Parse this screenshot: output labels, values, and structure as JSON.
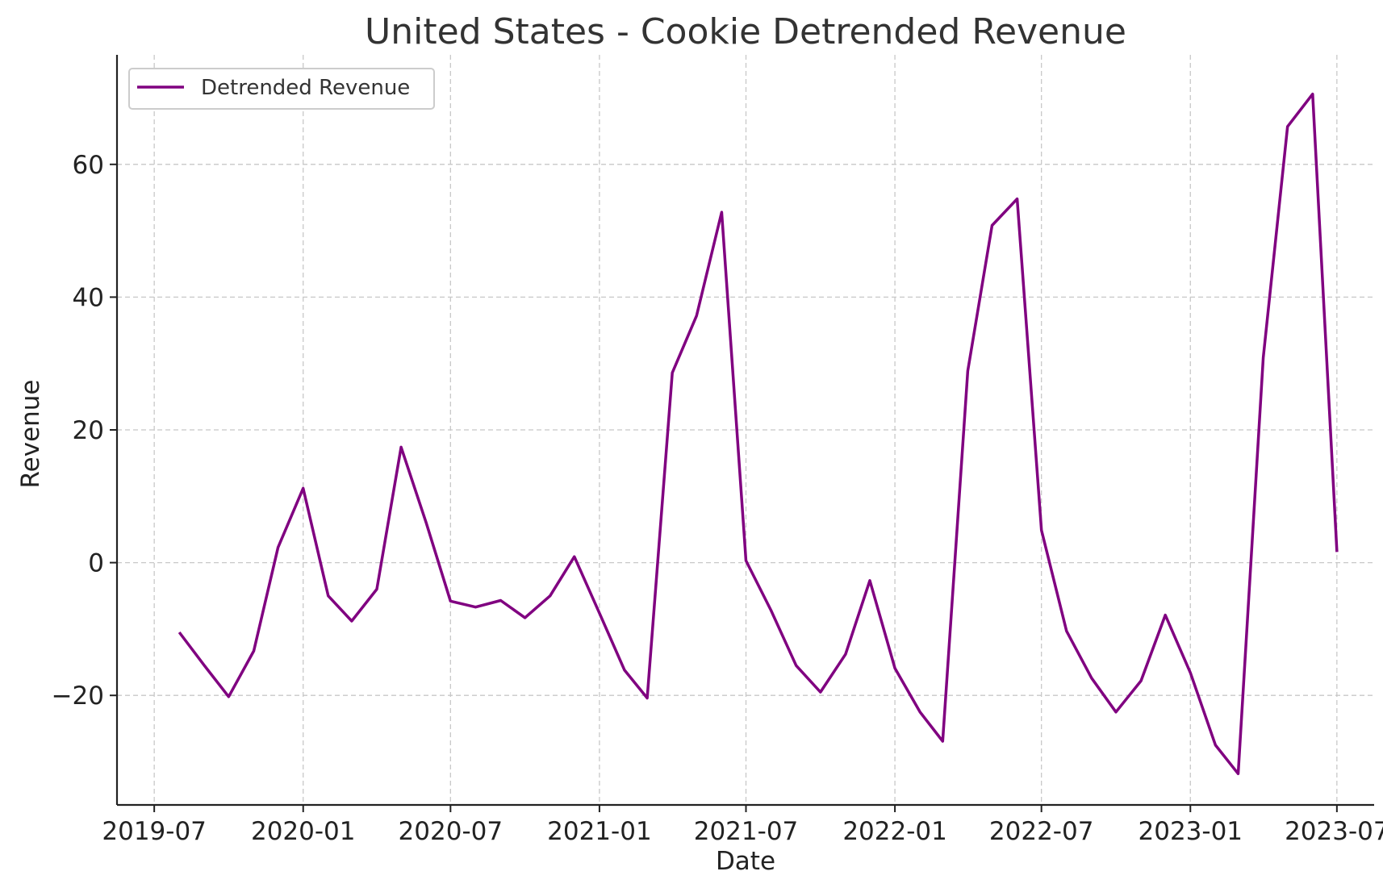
{
  "chart_data": {
    "type": "line",
    "title": "United States - Cookie Detrended Revenue",
    "xlabel": "Date",
    "ylabel": "Revenue",
    "x_ticks": [
      "2019-07",
      "2020-01",
      "2020-07",
      "2021-01",
      "2021-07",
      "2022-01",
      "2022-07",
      "2023-01",
      "2023-07"
    ],
    "y_ticks": [
      -20,
      0,
      20,
      40,
      60
    ],
    "y_tick_labels": [
      "−20",
      "0",
      "20",
      "40",
      "60"
    ],
    "xlim": [
      "2019-05-16",
      "2023-08-16"
    ],
    "ylim": [
      -36.5,
      76.5
    ],
    "grid": true,
    "legend": "upper-left",
    "series": [
      {
        "name": "Detrended Revenue",
        "color": "#800080",
        "x": [
          "2019-08",
          "2019-09",
          "2019-10",
          "2019-11",
          "2019-12",
          "2020-01",
          "2020-02",
          "2020-03",
          "2020-04",
          "2020-05",
          "2020-06",
          "2020-07",
          "2020-08",
          "2020-09",
          "2020-10",
          "2020-11",
          "2020-12",
          "2021-01",
          "2021-02",
          "2021-03",
          "2021-04",
          "2021-05",
          "2021-06",
          "2021-07",
          "2021-08",
          "2021-09",
          "2021-10",
          "2021-11",
          "2021-12",
          "2022-01",
          "2022-02",
          "2022-03",
          "2022-04",
          "2022-05",
          "2022-06",
          "2022-07",
          "2022-08",
          "2022-09",
          "2022-10",
          "2022-11",
          "2022-12",
          "2023-01",
          "2023-02",
          "2023-03",
          "2023-04",
          "2023-05",
          "2023-06",
          "2023-07"
        ],
        "values": [
          -10.5,
          -15.5,
          -20.2,
          -13.3,
          2.3,
          11.2,
          -5.0,
          -8.8,
          -4.0,
          17.4,
          6.0,
          -5.8,
          -6.7,
          -5.7,
          -8.3,
          -5.0,
          0.9,
          -7.6,
          -16.2,
          -20.4,
          28.6,
          37.2,
          52.8,
          0.3,
          -7.2,
          -15.5,
          -19.5,
          -13.8,
          -2.7,
          -15.9,
          -22.5,
          -26.9,
          28.9,
          50.8,
          54.8,
          4.9,
          -10.3,
          -17.4,
          -22.5,
          -17.8,
          -7.9,
          -16.6,
          -27.5,
          -31.8,
          30.9,
          65.7,
          70.6,
          1.6
        ]
      }
    ]
  }
}
